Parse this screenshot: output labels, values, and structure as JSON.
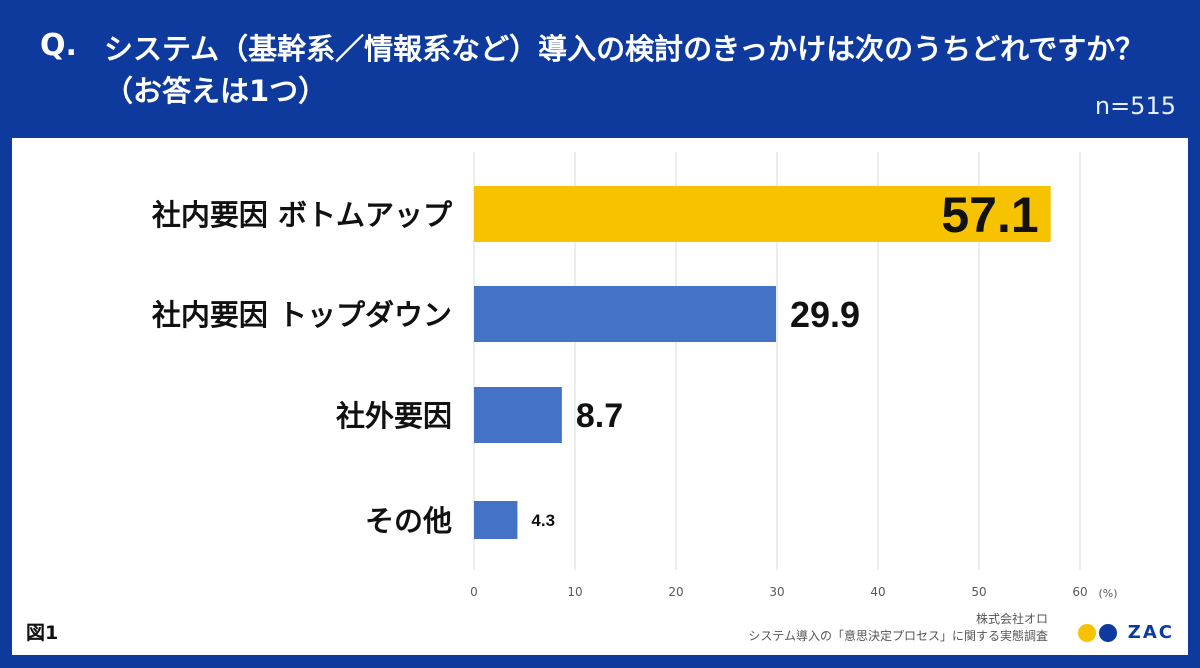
{
  "header": {
    "q_mark": "Q.",
    "question": "システム（基幹系／情報系など）導入の検討のきっかけは次のうちどれですか？（お答えは1つ）",
    "sample_size": "n=515"
  },
  "footer": {
    "figure_label": "図1",
    "company": "株式会社オロ",
    "survey": "システム導入の「意思決定プロセス」に関する実態調査",
    "logo_text": "ZAC"
  },
  "colors": {
    "background": "#0d3a9c",
    "highlight_bar": "#f7c300",
    "bar": "#4472c4",
    "logo_yellow": "#f7c300",
    "logo_blue": "#0d3a9c"
  },
  "chart_data": {
    "type": "bar",
    "orientation": "horizontal",
    "categories": [
      "社内要因 ボトムアップ",
      "社内要因 トップダウン",
      "社外要因",
      "その他"
    ],
    "values": [
      57.1,
      29.9,
      8.7,
      4.3
    ],
    "value_labels": [
      "57.1",
      "29.9",
      "8.7",
      "4.3"
    ],
    "highlight_index": 0,
    "xlim": [
      0,
      60
    ],
    "xticks": [
      0,
      10,
      20,
      30,
      40,
      50,
      60
    ],
    "xtick_labels": [
      "0",
      "10",
      "20",
      "30",
      "40",
      "50",
      "60"
    ],
    "unit_label": "(%)",
    "grid": true
  }
}
